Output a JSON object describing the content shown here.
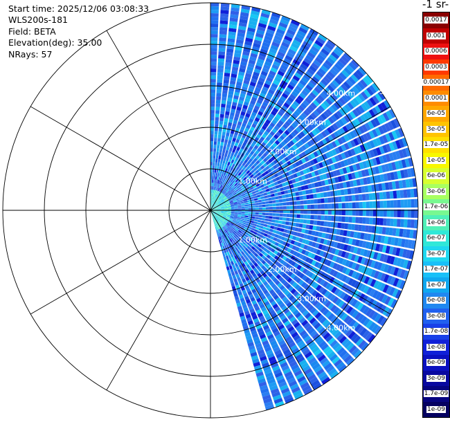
{
  "info": {
    "start_time": "Start time: 2025/12/06 03:08:33",
    "instrument": "WLS200s-181",
    "field": "Field: BETA",
    "elevation": "Elevation(deg): 35.00",
    "nrays": "NRays: 57"
  },
  "colorbar": {
    "title": "-1 sr-",
    "labels": [
      "0.0017",
      "0.001",
      "0.0006",
      "0.0003",
      "0.00017",
      "0.0001",
      "6e-05",
      "3e-05",
      "1.7e-05",
      "1e-05",
      "6e-06",
      "3e-06",
      "1.7e-06",
      "1e-06",
      "6e-07",
      "3e-07",
      "1.7e-07",
      "1e-07",
      "6e-08",
      "3e-08",
      "1.7e-08",
      "1e-08",
      "6e-09",
      "3e-09",
      "1.7e-09",
      "1e-09"
    ],
    "colors": [
      "#8a0000",
      "#c00000",
      "#ee1010",
      "#ff3a00",
      "#ff6a00",
      "#ff8c00",
      "#ffa800",
      "#ffc400",
      "#ffe000",
      "#f8f800",
      "#d8ff30",
      "#a8ff60",
      "#78f890",
      "#50f0b8",
      "#30e8d8",
      "#20d8f0",
      "#18c0f8",
      "#10a8f0",
      "#2088f0",
      "#2060f0",
      "#1840e8",
      "#1020d8",
      "#0a10c0",
      "#0808a0",
      "#060480",
      "#040060"
    ]
  },
  "chart_data": {
    "type": "heatmap",
    "projection": "polar PPI scan",
    "field": "BETA",
    "range_ring_labels": [
      "1.00km",
      "2.00km",
      "3.00km",
      "4.00km",
      "5"
    ],
    "range_rings_km": [
      1,
      2,
      3,
      4,
      5
    ],
    "max_range_km": 5,
    "azimuth_coverage_deg": [
      0,
      165
    ],
    "ray_count": 57,
    "color_scale": "log",
    "value_range": [
      1e-09,
      0.0017
    ],
    "grid": true,
    "dominant_values": [
      "1e-08",
      "1.7e-08",
      "3e-08",
      "6e-08"
    ]
  }
}
